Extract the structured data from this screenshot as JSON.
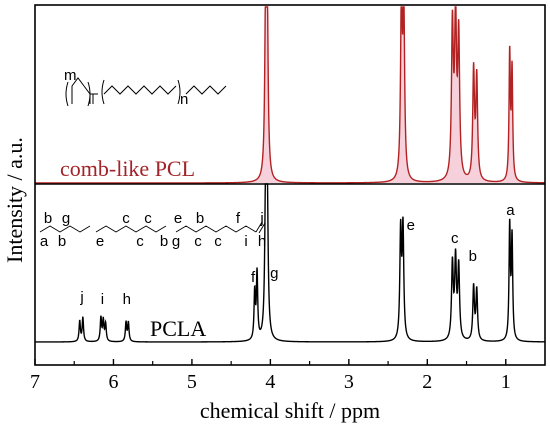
{
  "chart_data": {
    "type": "line",
    "xlabel": "chemical shift / ppm",
    "ylabel": "Intensity / a.u.",
    "xlim": [
      7.0,
      0.5
    ],
    "x_ticks": [
      "7",
      "6",
      "5",
      "4",
      "3",
      "2",
      "1"
    ],
    "x_reversed": true,
    "grid": false,
    "series": [
      {
        "name": "comb-like PCL",
        "color": "#b22222",
        "fill": "#f5c8d4",
        "peaks": [
          {
            "x": 4.06,
            "height": 0.98,
            "width": 0.013
          },
          {
            "x": 4.04,
            "height": 0.92,
            "width": 0.013
          },
          {
            "x": 2.33,
            "height": 1.0,
            "width": 0.013
          },
          {
            "x": 2.3,
            "height": 0.96,
            "width": 0.013
          },
          {
            "x": 1.68,
            "height": 0.86,
            "width": 0.014
          },
          {
            "x": 1.64,
            "height": 0.9,
            "width": 0.014
          },
          {
            "x": 1.6,
            "height": 0.8,
            "width": 0.014
          },
          {
            "x": 1.41,
            "height": 0.62,
            "width": 0.013
          },
          {
            "x": 1.37,
            "height": 0.58,
            "width": 0.013
          },
          {
            "x": 0.95,
            "height": 0.72,
            "width": 0.01
          },
          {
            "x": 0.92,
            "height": 0.62,
            "width": 0.01
          }
        ]
      },
      {
        "name": "PCLA",
        "color": "#000000",
        "fill": "none",
        "peaks": [
          {
            "x": 6.43,
            "height": 0.13,
            "width": 0.01
          },
          {
            "x": 6.39,
            "height": 0.15,
            "width": 0.01
          },
          {
            "x": 6.16,
            "height": 0.15,
            "width": 0.01
          },
          {
            "x": 6.13,
            "height": 0.13,
            "width": 0.01
          },
          {
            "x": 6.1,
            "height": 0.11,
            "width": 0.01
          },
          {
            "x": 5.84,
            "height": 0.12,
            "width": 0.01
          },
          {
            "x": 5.81,
            "height": 0.12,
            "width": 0.01
          },
          {
            "x": 4.2,
            "height": 0.3,
            "width": 0.01
          },
          {
            "x": 4.17,
            "height": 0.42,
            "width": 0.01
          },
          {
            "x": 4.06,
            "height": 0.95,
            "width": 0.013
          },
          {
            "x": 4.04,
            "height": 0.85,
            "width": 0.013
          },
          {
            "x": 2.34,
            "height": 0.68,
            "width": 0.012
          },
          {
            "x": 2.31,
            "height": 0.7,
            "width": 0.012
          },
          {
            "x": 1.68,
            "height": 0.48,
            "width": 0.013
          },
          {
            "x": 1.64,
            "height": 0.5,
            "width": 0.013
          },
          {
            "x": 1.6,
            "height": 0.46,
            "width": 0.013
          },
          {
            "x": 1.41,
            "height": 0.34,
            "width": 0.012
          },
          {
            "x": 1.37,
            "height": 0.32,
            "width": 0.012
          },
          {
            "x": 0.95,
            "height": 0.72,
            "width": 0.01
          },
          {
            "x": 0.92,
            "height": 0.64,
            "width": 0.01
          }
        ]
      }
    ],
    "peak_labels": [
      {
        "text": "j",
        "x": 6.4
      },
      {
        "text": "i",
        "x": 6.14
      },
      {
        "text": "h",
        "x": 5.83
      },
      {
        "text": "f",
        "x": 4.22
      },
      {
        "text": "g",
        "x": 3.95
      },
      {
        "text": "e",
        "x": 2.21
      },
      {
        "text": "c",
        "x": 1.65
      },
      {
        "text": "b",
        "x": 1.42
      },
      {
        "text": "a",
        "x": 0.94
      }
    ],
    "structure_letters_pcla": {
      "top": [
        "b",
        "g",
        "c",
        "c",
        "e",
        "b",
        "f",
        "j"
      ],
      "bottom": [
        "a",
        "b",
        "e",
        "c",
        "b",
        "g",
        "c",
        "c",
        "i",
        "h"
      ]
    },
    "structure_letters_comb": [
      "m",
      "n"
    ]
  }
}
